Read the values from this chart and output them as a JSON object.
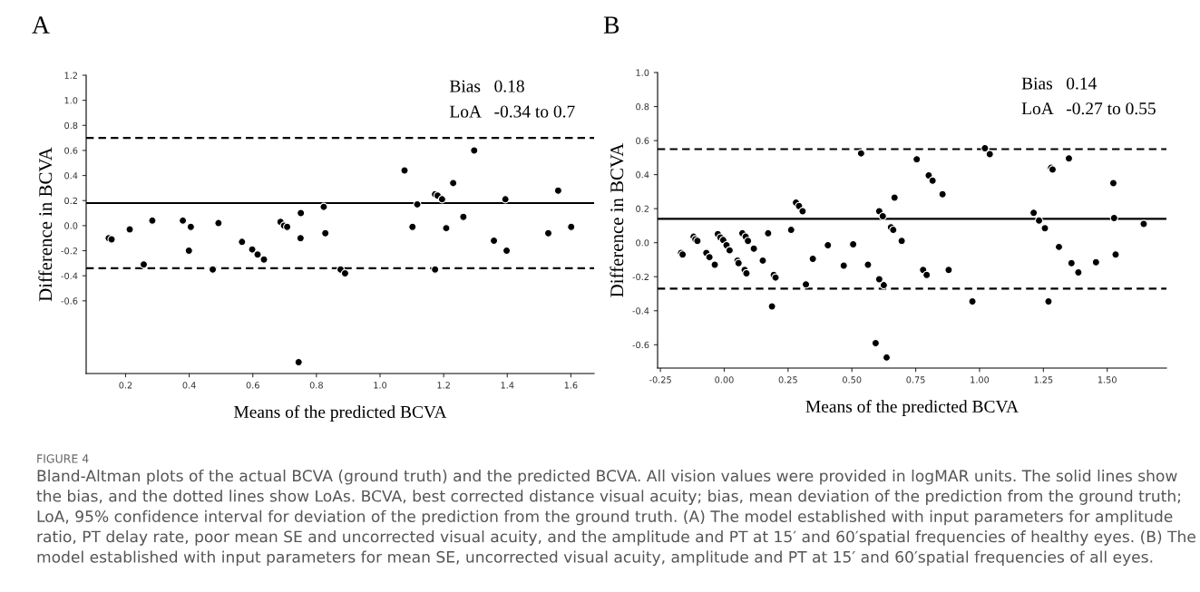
{
  "chart_data": [
    {
      "type": "scatter",
      "title": "A",
      "xlabel": "Means of the predicted BCVA",
      "ylabel": "Difference in BCVA",
      "marker": "circle",
      "grid": false,
      "xlim": [
        0.076,
        1.673
      ],
      "ylim": [
        -1.18,
        1.2
      ],
      "xticks": [
        {
          "value": 0.2,
          "label": "0.2"
        },
        {
          "value": 0.4,
          "label": "0.4"
        },
        {
          "value": 0.6,
          "label": "0.6"
        },
        {
          "value": 0.8,
          "label": "0.8"
        },
        {
          "value": 1.0,
          "label": "1.0"
        },
        {
          "value": 1.2,
          "label": "1.2"
        },
        {
          "value": 1.4,
          "label": "1.4"
        },
        {
          "value": 1.6,
          "label": "1.6"
        }
      ],
      "yticks": [
        {
          "value": -0.6,
          "label": "-0.6"
        },
        {
          "value": -0.4,
          "label": "-0.4"
        },
        {
          "value": -0.2,
          "label": "-0.2"
        },
        {
          "value": 0.0,
          "label": "0.0"
        },
        {
          "value": 0.2,
          "label": "0.2"
        },
        {
          "value": 0.4,
          "label": "0.4"
        },
        {
          "value": 0.6,
          "label": "0.6"
        },
        {
          "value": 0.8,
          "label": "0.8"
        },
        {
          "value": 1.0,
          "label": "1.0"
        },
        {
          "value": 1.2,
          "label": "1.2"
        }
      ],
      "ref_lines": [
        {
          "axis": "y",
          "value": 0.18,
          "line_style": "solid",
          "color": "#000000"
        },
        {
          "axis": "y",
          "value": 0.7,
          "line_style": "dashed",
          "color": "#000000"
        },
        {
          "axis": "y",
          "value": -0.34,
          "line_style": "dashed",
          "color": "#000000"
        }
      ],
      "annotations": [
        "Bias   0.18",
        "LoA   -0.34 to 0.7"
      ],
      "series": [
        {
          "color": "#000000",
          "x": [
            0.147,
            0.156,
            0.213,
            0.257,
            0.284,
            0.38,
            0.405,
            0.399,
            0.474,
            0.492,
            0.566,
            0.598,
            0.615,
            0.635,
            0.687,
            0.698,
            0.708,
            0.751,
            0.75,
            0.744,
            0.823,
            0.828,
            0.876,
            0.89,
            1.077,
            1.102,
            1.117,
            1.173,
            1.181,
            1.195,
            1.173,
            1.208,
            1.23,
            1.262,
            1.296,
            1.358,
            1.394,
            1.398,
            1.529,
            1.56,
            1.601
          ],
          "values": [
            -0.1,
            -0.11,
            -0.03,
            -0.31,
            0.04,
            0.04,
            -0.01,
            -0.2,
            -0.35,
            0.02,
            -0.13,
            -0.19,
            -0.23,
            -0.27,
            0.03,
            0.0,
            -0.01,
            0.1,
            -0.1,
            -1.09,
            0.15,
            -0.06,
            -0.35,
            -0.38,
            0.44,
            -0.01,
            0.17,
            0.25,
            0.24,
            0.21,
            -0.35,
            -0.02,
            0.34,
            0.07,
            0.6,
            -0.12,
            0.21,
            -0.2,
            -0.06,
            0.28,
            -0.01
          ]
        }
      ]
    },
    {
      "type": "scatter",
      "title": "B",
      "xlabel": "Means of the predicted BCVA",
      "ylabel": "Difference in BCVA",
      "marker": "circle",
      "grid": false,
      "xlim": [
        -0.261,
        1.732
      ],
      "ylim": [
        -0.737,
        1.0
      ],
      "xticks": [
        {
          "value": -0.25,
          "label": "-0.25"
        },
        {
          "value": 0.0,
          "label": "0.00"
        },
        {
          "value": 0.25,
          "label": "0.25"
        },
        {
          "value": 0.5,
          "label": "0.50"
        },
        {
          "value": 0.75,
          "label": "0.75"
        },
        {
          "value": 1.0,
          "label": "1.00"
        },
        {
          "value": 1.25,
          "label": "1.25"
        },
        {
          "value": 1.5,
          "label": "1.50"
        }
      ],
      "yticks": [
        {
          "value": -0.6,
          "label": "-0.6"
        },
        {
          "value": -0.4,
          "label": "-0.4"
        },
        {
          "value": -0.2,
          "label": "-0.2"
        },
        {
          "value": 0.0,
          "label": "0.0"
        },
        {
          "value": 0.2,
          "label": "0.2"
        },
        {
          "value": 0.4,
          "label": "0.4"
        },
        {
          "value": 0.6,
          "label": "0.6"
        },
        {
          "value": 0.8,
          "label": "0.8"
        },
        {
          "value": 1.0,
          "label": "1.0"
        }
      ],
      "ref_lines": [
        {
          "axis": "y",
          "value": 0.14,
          "line_style": "solid",
          "color": "#000000"
        },
        {
          "axis": "y",
          "value": 0.55,
          "line_style": "dashed",
          "color": "#000000"
        },
        {
          "axis": "y",
          "value": -0.27,
          "line_style": "dashed",
          "color": "#000000"
        }
      ],
      "annotations": [
        "Bias   0.14",
        "LoA   -0.27 to 0.55",
        "FIGURE 4",
        "Bland-Altman plots of the actual BCVA (ground truth) and the predicted BCVA. All vision values were provided in logMAR units. The solid lines show the bias, and the dotted lines show LoAs. BCVA, best corrected distance visual acuity; bias, mean deviation of the prediction from the ground truth; LoA, 95% confidence interval for deviation of the prediction from the ground truth. (A) The model established with input parameters for amplitude ratio, PT delay rate, poor mean SE and uncorrected visual acuity, and the amplitude and PT at 15′ and 60′spatial frequencies of healthy eyes. (B) The model established with input parameters for mean SE, uncorrected visual acuity, amplitude and PT at 15′ and 60′spatial frequencies of all eyes."
      ],
      "series": [
        {
          "color": "#000000",
          "x": [
            -0.169,
            -0.163,
            -0.12,
            -0.113,
            -0.105,
            -0.07,
            -0.058,
            -0.037,
            -0.025,
            -0.015,
            -0.004,
            0.009,
            0.021,
            0.052,
            0.056,
            0.071,
            0.084,
            0.093,
            0.08,
            0.087,
            0.116,
            0.151,
            0.172,
            0.187,
            0.194,
            0.201,
            0.262,
            0.281,
            0.293,
            0.307,
            0.32,
            0.347,
            0.406,
            0.468,
            0.505,
            0.536,
            0.563,
            0.593,
            0.607,
            0.621,
            0.607,
            0.625,
            0.636,
            0.653,
            0.662,
            0.667,
            0.695,
            0.754,
            0.779,
            0.793,
            0.801,
            0.816,
            0.855,
            0.879,
            0.972,
            1.021,
            1.04,
            1.212,
            1.233,
            1.256,
            1.27,
            1.28,
            1.286,
            1.311,
            1.35,
            1.36,
            1.387,
            1.456,
            1.524,
            1.527,
            1.533,
            1.643
          ],
          "values": [
            -0.06,
            -0.07,
            0.035,
            0.02,
            0.01,
            -0.06,
            -0.085,
            -0.13,
            0.05,
            0.03,
            0.015,
            -0.015,
            -0.045,
            -0.105,
            -0.12,
            0.055,
            0.035,
            0.01,
            -0.16,
            -0.18,
            -0.035,
            -0.105,
            0.055,
            -0.375,
            -0.19,
            -0.205,
            0.075,
            0.235,
            0.215,
            0.185,
            -0.245,
            -0.095,
            -0.015,
            -0.135,
            -0.01,
            0.525,
            -0.13,
            -0.59,
            0.185,
            0.155,
            -0.215,
            -0.25,
            -0.675,
            0.09,
            0.075,
            0.265,
            0.01,
            0.49,
            -0.16,
            -0.19,
            0.395,
            0.365,
            0.285,
            -0.16,
            -0.345,
            0.555,
            0.52,
            0.175,
            0.13,
            0.085,
            -0.345,
            0.44,
            0.43,
            -0.025,
            0.495,
            -0.12,
            -0.175,
            -0.115,
            0.35,
            0.145,
            -0.07,
            0.11
          ]
        }
      ]
    }
  ]
}
